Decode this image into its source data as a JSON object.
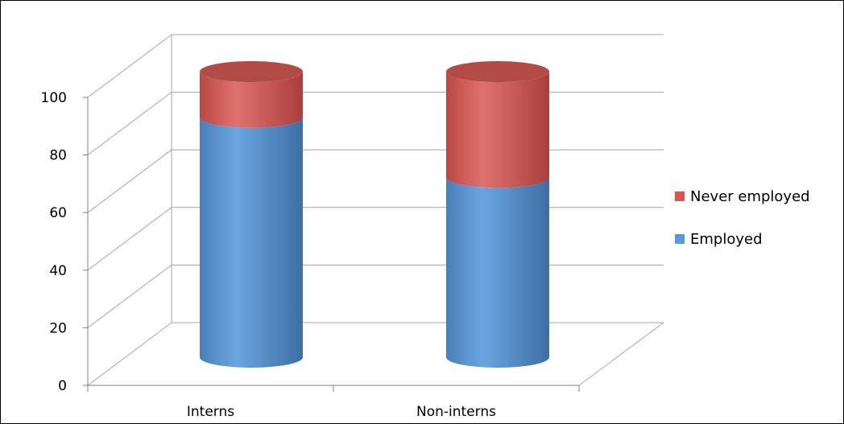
{
  "chart_data": {
    "type": "bar",
    "stacked": true,
    "style": "3d-cylinder",
    "categories": [
      "Interns",
      "Non-interns"
    ],
    "series": [
      {
        "name": "Employed",
        "values": [
          84,
          63
        ],
        "color": "#5B9BD5"
      },
      {
        "name": "Never employed",
        "values": [
          16,
          37
        ],
        "color": "#D9534F"
      }
    ],
    "ylim": [
      0,
      100
    ],
    "yticks": [
      0,
      20,
      40,
      60,
      80,
      100
    ],
    "grid": true,
    "legend": "right"
  }
}
